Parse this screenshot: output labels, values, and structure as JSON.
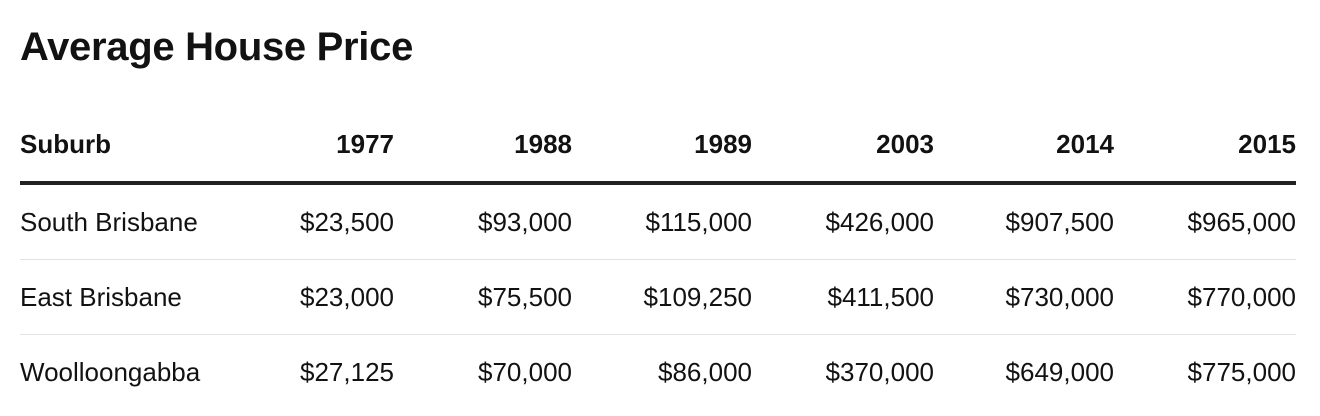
{
  "header": {
    "title": "Average House Price"
  },
  "table": {
    "columns": [
      "Suburb",
      "1977",
      "1988",
      "1989",
      "2003",
      "2014",
      "2015"
    ],
    "rows": [
      [
        "South Brisbane",
        "$23,500",
        "$93,000",
        "$115,000",
        "$426,000",
        "$907,500",
        "$965,000"
      ],
      [
        "East Brisbane",
        "$23,000",
        "$75,500",
        "$109,250",
        "$411,500",
        "$730,000",
        "$770,000"
      ],
      [
        "Woolloongabba",
        "$27,125",
        "$70,000",
        "$86,000",
        "$370,000",
        "$649,000",
        "$775,000"
      ]
    ]
  }
}
